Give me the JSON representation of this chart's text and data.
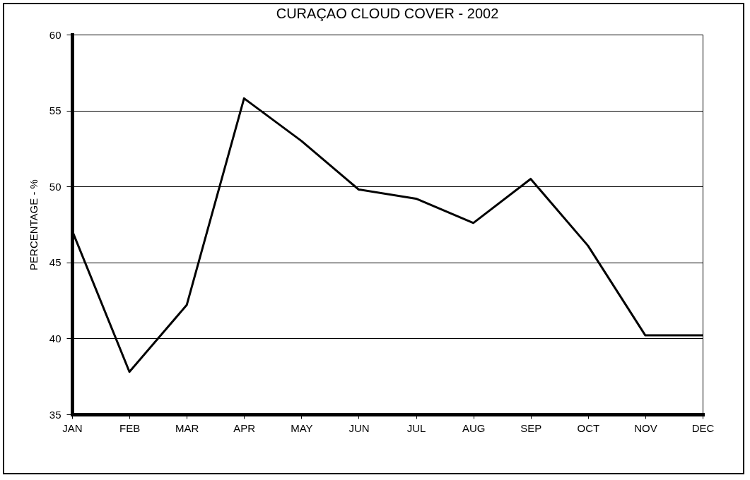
{
  "chart_data": {
    "type": "line",
    "title": "CURAÇAO CLOUD COVER - 2002",
    "ylabel": "PERCENTAGE - %",
    "categories": [
      "JAN",
      "FEB",
      "MAR",
      "APR",
      "MAY",
      "JUN",
      "JUL",
      "AUG",
      "SEP",
      "OCT",
      "NOV",
      "DEC"
    ],
    "series": [
      {
        "color": "#000000",
        "values": [
          47.1,
          37.8,
          42.2,
          55.8,
          53.0,
          49.8,
          49.2,
          47.6,
          50.5,
          46.1,
          40.2,
          40.2
        ]
      }
    ],
    "ylim": [
      35,
      60
    ],
    "yticks": [
      35,
      40,
      45,
      50,
      55,
      60
    ],
    "grid": "y",
    "marker": "none",
    "line_style": "solid"
  }
}
